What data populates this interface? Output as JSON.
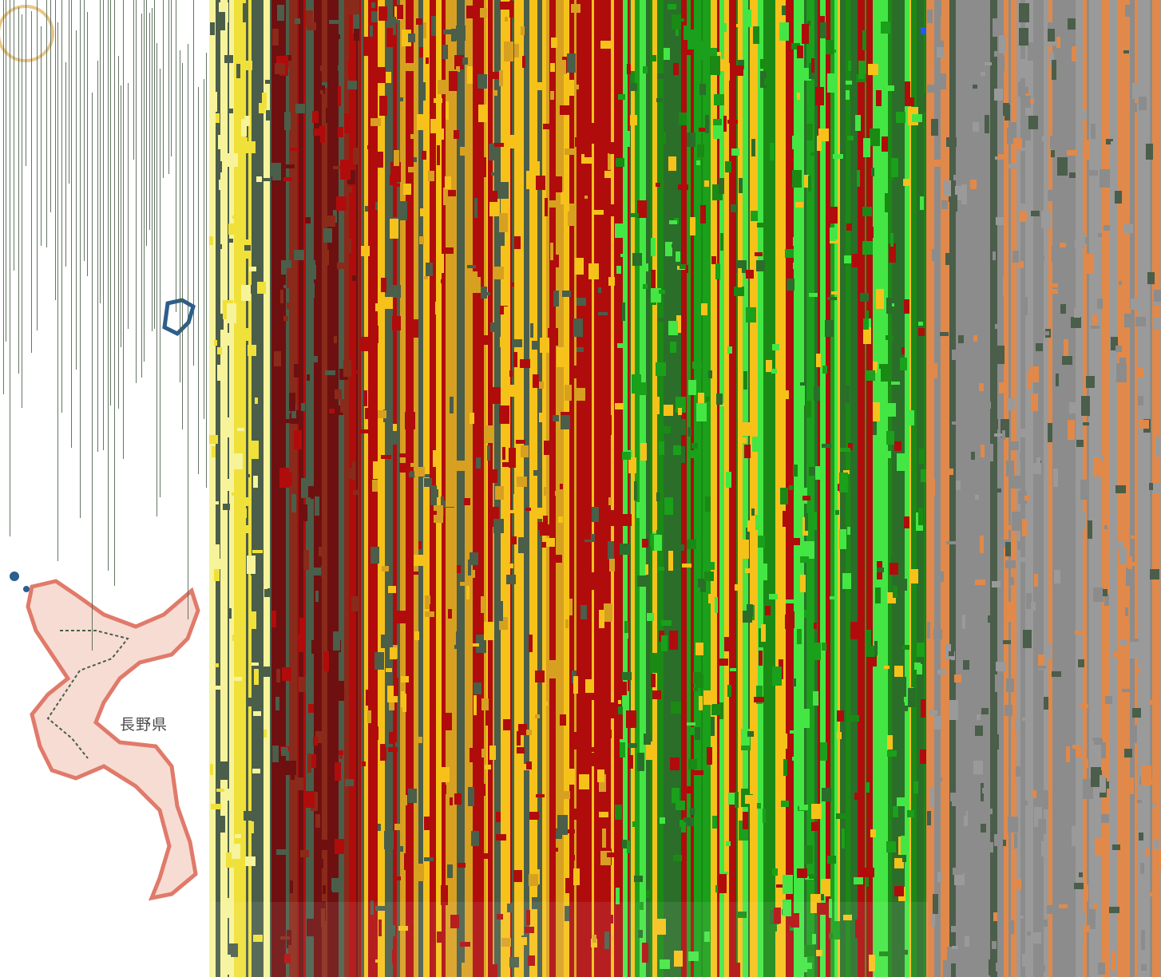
{
  "map": {
    "labels": {
      "prefecture": "長野県"
    },
    "colors": {
      "background": "#ffffff",
      "coast_outline": "#e07a6a",
      "coast_fill": "#f7dcd3",
      "water": "#2b5f8c",
      "stripe_dark": "#4a5e4a",
      "band_yellow": "#f0e03a",
      "band_red": "#b00c0c",
      "band_amber": "#f6c21a",
      "band_green": "#1a8a14",
      "band_lime": "#44e644",
      "band_gray": "#8c8c8c",
      "band_orange": "#e0894a"
    },
    "icons": {
      "marker": "blue-square-marker"
    }
  }
}
